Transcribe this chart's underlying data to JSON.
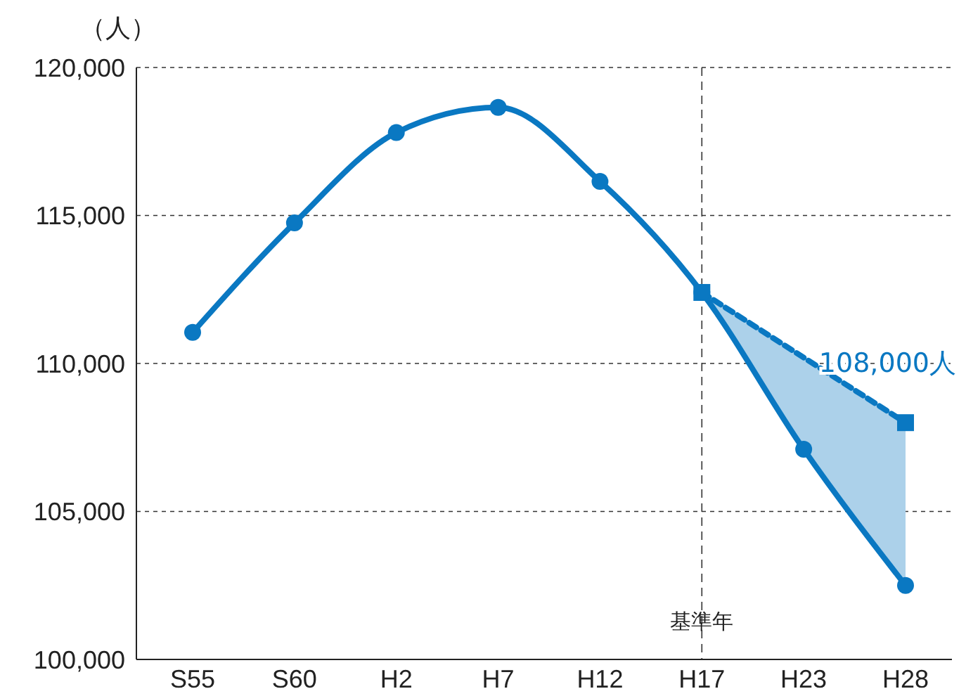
{
  "chart_data": {
    "type": "line",
    "ylabel": "（人）",
    "categories": [
      "S55",
      "S60",
      "H2",
      "H7",
      "H12",
      "H17",
      "H23",
      "H28"
    ],
    "series": [
      {
        "color": "#0a78c2",
        "values": [
          111050,
          114750,
          117800,
          118650,
          116150,
          112400,
          107100,
          102500
        ],
        "marker": "circle",
        "line_style": "solid"
      },
      {
        "color": "#0a78c2",
        "values": [
          null,
          null,
          null,
          null,
          null,
          112400,
          null,
          108000
        ],
        "marker": "square",
        "line_style": "dashed",
        "value_labels": [
          null,
          null,
          null,
          null,
          null,
          null,
          null,
          "108,000人"
        ],
        "lower": [
          null,
          null,
          null,
          null,
          null,
          112400,
          107100,
          102500
        ],
        "upper": [
          null,
          null,
          null,
          null,
          null,
          112400,
          110200,
          108000
        ]
      }
    ],
    "ylim": [
      100000,
      120000
    ],
    "yticks": [
      {
        "value": 100000,
        "label": "100,000"
      },
      {
        "value": 105000,
        "label": "105,000"
      },
      {
        "value": 110000,
        "label": "110,000"
      },
      {
        "value": 115000,
        "label": "115,000"
      },
      {
        "value": 120000,
        "label": "120,000"
      }
    ],
    "grid": "y",
    "ref_lines": [
      {
        "axis": "x",
        "value": "H17",
        "label": "基準年",
        "line_style": "dashed"
      }
    ]
  }
}
